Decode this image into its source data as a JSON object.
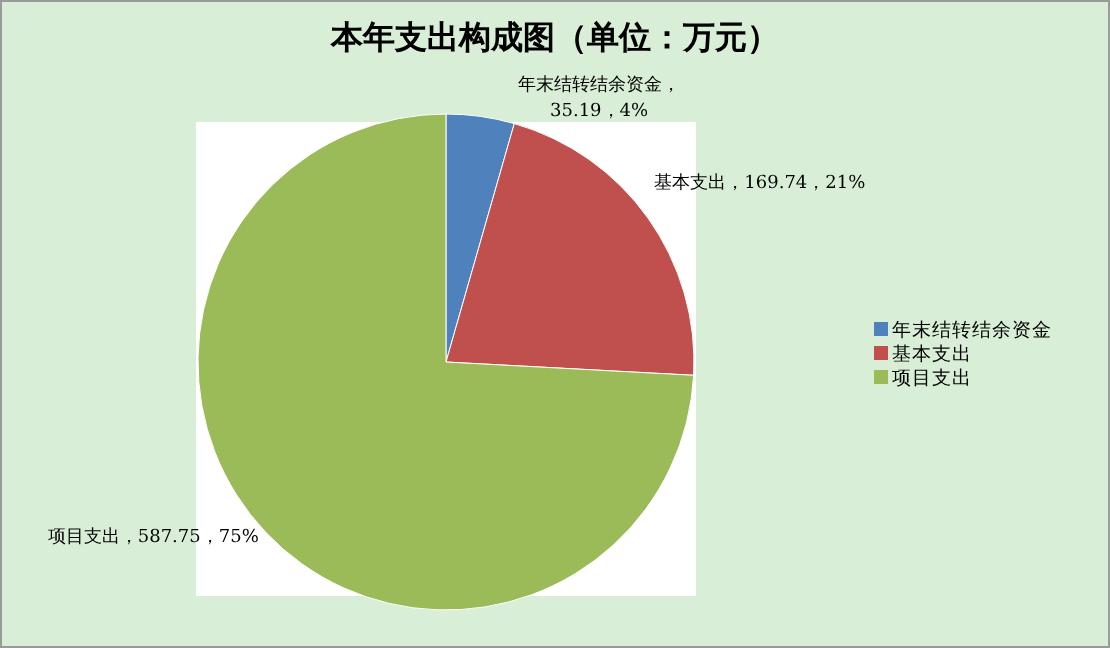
{
  "chart_data": {
    "type": "pie",
    "title": "本年支出构成图（单位：万元）",
    "categories": [
      "年末结转结余资金",
      "基本支出",
      "项目支出"
    ],
    "values": [
      35.19,
      169.74,
      587.75
    ],
    "colors": [
      "#4f81bd",
      "#c0504d",
      "#9bbb59"
    ],
    "value_labels": [
      "年末结转结余资金，35.19，4%",
      "基本支出，169.74，21%",
      "项目支出，587.75，75%"
    ],
    "legend": "right"
  }
}
